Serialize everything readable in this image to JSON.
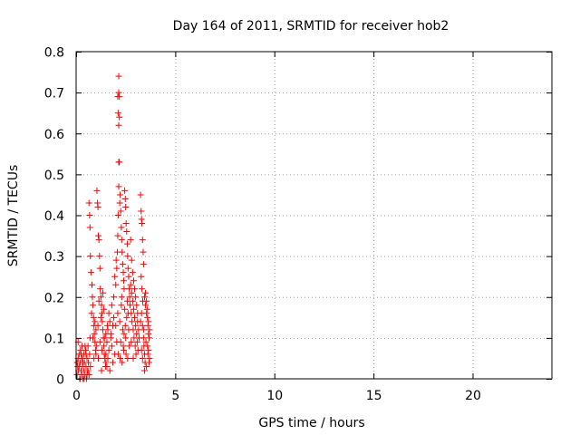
{
  "chart_data": {
    "type": "scatter",
    "title": "Day 164 of 2011, SRMTID for receiver hob2",
    "xlabel": "GPS time / hours",
    "ylabel": "SRMTID / TECUs",
    "xlim": [
      0,
      24
    ],
    "ylim": [
      0,
      0.8
    ],
    "grid": true,
    "xticks": [
      0,
      5,
      10,
      15,
      20
    ],
    "xtick_labels": [
      "0",
      "5",
      "10",
      "15",
      "20"
    ],
    "yticks": [
      0,
      0.1,
      0.2,
      0.3,
      0.4,
      0.5,
      0.6,
      0.7,
      0.8
    ],
    "ytick_labels": [
      "0",
      "0.1",
      "0.2",
      "0.3",
      "0.4",
      "0.5",
      "0.6",
      "0.7",
      "0.8"
    ],
    "marker": "plus",
    "color": "#ff0000",
    "series": [
      {
        "name": "SRMTID",
        "points": [
          [
            0.05,
            0.01
          ],
          [
            0.08,
            0.03
          ],
          [
            0.1,
            0.05
          ],
          [
            0.12,
            0.02
          ],
          [
            0.15,
            0.06
          ],
          [
            0.18,
            0.0
          ],
          [
            0.2,
            0.04
          ],
          [
            0.22,
            0.07
          ],
          [
            0.25,
            0.02
          ],
          [
            0.28,
            0.01
          ],
          [
            0.3,
            0.05
          ],
          [
            0.32,
            0.03
          ],
          [
            0.35,
            0.0
          ],
          [
            0.38,
            0.06
          ],
          [
            0.4,
            0.02
          ],
          [
            0.42,
            0.04
          ],
          [
            0.45,
            0.01
          ],
          [
            0.48,
            0.07
          ],
          [
            0.5,
            0.03
          ],
          [
            0.52,
            0.0
          ],
          [
            0.55,
            0.05
          ],
          [
            0.58,
            0.02
          ],
          [
            0.6,
            0.08
          ],
          [
            0.62,
            0.04
          ],
          [
            0.65,
            0.01
          ],
          [
            0.68,
            0.06
          ],
          [
            0.7,
            0.1
          ],
          [
            0.72,
            0.03
          ],
          [
            0.1,
            0.09
          ],
          [
            0.2,
            0.0
          ],
          [
            0.3,
            0.08
          ],
          [
            0.15,
            0.03
          ],
          [
            0.25,
            0.06
          ],
          [
            0.35,
            0.04
          ],
          [
            0.45,
            0.08
          ],
          [
            0.55,
            0.01
          ],
          [
            0.05,
            0.04
          ],
          [
            0.4,
            0.0
          ],
          [
            0.5,
            0.06
          ],
          [
            0.6,
            0.02
          ],
          [
            0.65,
            0.43
          ],
          [
            0.68,
            0.4
          ],
          [
            0.7,
            0.37
          ],
          [
            0.72,
            0.3
          ],
          [
            0.75,
            0.26
          ],
          [
            0.8,
            0.23
          ],
          [
            0.82,
            0.2
          ],
          [
            0.85,
            0.18
          ],
          [
            0.88,
            0.15
          ],
          [
            0.9,
            0.13
          ],
          [
            0.92,
            0.11
          ],
          [
            0.95,
            0.09
          ],
          [
            0.98,
            0.07
          ],
          [
            1.0,
            0.12
          ],
          [
            0.78,
            0.16
          ],
          [
            0.85,
            0.1
          ],
          [
            0.9,
            0.05
          ],
          [
            0.95,
            0.14
          ],
          [
            1.0,
            0.06
          ],
          [
            1.02,
            0.08
          ],
          [
            1.05,
            0.46
          ],
          [
            1.08,
            0.43
          ],
          [
            1.1,
            0.42
          ],
          [
            1.12,
            0.35
          ],
          [
            1.15,
            0.34
          ],
          [
            1.18,
            0.3
          ],
          [
            1.2,
            0.27
          ],
          [
            1.22,
            0.22
          ],
          [
            1.25,
            0.2
          ],
          [
            1.28,
            0.18
          ],
          [
            1.3,
            0.16
          ],
          [
            1.32,
            0.14
          ],
          [
            1.35,
            0.12
          ],
          [
            1.38,
            0.1
          ],
          [
            1.4,
            0.08
          ],
          [
            1.42,
            0.06
          ],
          [
            1.45,
            0.05
          ],
          [
            1.48,
            0.03
          ],
          [
            1.5,
            0.11
          ],
          [
            1.1,
            0.13
          ],
          [
            1.15,
            0.19
          ],
          [
            1.2,
            0.09
          ],
          [
            1.25,
            0.15
          ],
          [
            1.3,
            0.07
          ],
          [
            1.35,
            0.21
          ],
          [
            1.4,
            0.17
          ],
          [
            1.45,
            0.1
          ],
          [
            1.5,
            0.04
          ],
          [
            1.12,
            0.05
          ],
          [
            1.28,
            0.02
          ],
          [
            1.5,
            0.06
          ],
          [
            1.55,
            0.09
          ],
          [
            1.6,
            0.12
          ],
          [
            1.65,
            0.07
          ],
          [
            1.7,
            0.14
          ],
          [
            1.75,
            0.1
          ],
          [
            1.8,
            0.18
          ],
          [
            1.85,
            0.13
          ],
          [
            1.9,
            0.2
          ],
          [
            1.95,
            0.25
          ],
          [
            1.55,
            0.03
          ],
          [
            1.6,
            0.05
          ],
          [
            1.65,
            0.16
          ],
          [
            1.7,
            0.02
          ],
          [
            1.75,
            0.11
          ],
          [
            1.8,
            0.08
          ],
          [
            1.85,
            0.04
          ],
          [
            1.9,
            0.15
          ],
          [
            1.95,
            0.06
          ],
          [
            1.58,
            0.13
          ],
          [
            2.0,
            0.23
          ],
          [
            2.02,
            0.29
          ],
          [
            2.05,
            0.27
          ],
          [
            2.08,
            0.31
          ],
          [
            2.1,
            0.35
          ],
          [
            2.12,
            0.4
          ],
          [
            2.0,
            0.13
          ],
          [
            2.05,
            0.09
          ],
          [
            2.1,
            0.16
          ],
          [
            2.12,
            0.06
          ],
          [
            2.15,
            0.47
          ],
          [
            2.15,
            0.53
          ],
          [
            2.18,
            0.53
          ],
          [
            2.15,
            0.62
          ],
          [
            2.12,
            0.65
          ],
          [
            2.18,
            0.64
          ],
          [
            2.1,
            0.69
          ],
          [
            2.15,
            0.7
          ],
          [
            2.18,
            0.69
          ],
          [
            2.15,
            0.74
          ],
          [
            2.2,
            0.43
          ],
          [
            2.22,
            0.45
          ],
          [
            2.25,
            0.41
          ],
          [
            2.28,
            0.37
          ],
          [
            2.3,
            0.34
          ],
          [
            2.32,
            0.31
          ],
          [
            2.35,
            0.28
          ],
          [
            2.38,
            0.26
          ],
          [
            2.4,
            0.24
          ],
          [
            2.42,
            0.22
          ],
          [
            2.45,
            0.46
          ],
          [
            2.48,
            0.44
          ],
          [
            2.5,
            0.42
          ],
          [
            2.52,
            0.38
          ],
          [
            2.55,
            0.36
          ],
          [
            2.58,
            0.33
          ],
          [
            2.6,
            0.3
          ],
          [
            2.62,
            0.27
          ],
          [
            2.65,
            0.25
          ],
          [
            2.68,
            0.22
          ],
          [
            2.2,
            0.14
          ],
          [
            2.25,
            0.09
          ],
          [
            2.3,
            0.2
          ],
          [
            2.35,
            0.12
          ],
          [
            2.4,
            0.07
          ],
          [
            2.45,
            0.17
          ],
          [
            2.5,
            0.1
          ],
          [
            2.55,
            0.15
          ],
          [
            2.6,
            0.05
          ],
          [
            2.65,
            0.12
          ],
          [
            2.22,
            0.05
          ],
          [
            2.28,
            0.18
          ],
          [
            2.38,
            0.08
          ],
          [
            2.48,
            0.13
          ],
          [
            2.58,
            0.19
          ],
          [
            2.68,
            0.08
          ],
          [
            2.32,
            0.04
          ],
          [
            2.42,
            0.11
          ],
          [
            2.52,
            0.06
          ],
          [
            2.62,
            0.16
          ],
          [
            2.7,
            0.2
          ],
          [
            2.72,
            0.18
          ],
          [
            2.75,
            0.23
          ],
          [
            2.78,
            0.16
          ],
          [
            2.8,
            0.21
          ],
          [
            2.82,
            0.14
          ],
          [
            2.85,
            0.19
          ],
          [
            2.88,
            0.12
          ],
          [
            2.9,
            0.17
          ],
          [
            2.92,
            0.1
          ],
          [
            2.95,
            0.15
          ],
          [
            2.98,
            0.08
          ],
          [
            3.0,
            0.13
          ],
          [
            3.02,
            0.06
          ],
          [
            3.05,
            0.11
          ],
          [
            3.08,
            0.09
          ],
          [
            3.1,
            0.14
          ],
          [
            3.12,
            0.07
          ],
          [
            3.15,
            0.12
          ],
          [
            3.18,
            0.1
          ],
          [
            2.75,
            0.34
          ],
          [
            2.8,
            0.29
          ],
          [
            2.85,
            0.26
          ],
          [
            2.9,
            0.24
          ],
          [
            2.95,
            0.22
          ],
          [
            3.0,
            0.2
          ],
          [
            3.05,
            0.18
          ],
          [
            3.1,
            0.16
          ],
          [
            2.78,
            0.09
          ],
          [
            2.88,
            0.05
          ],
          [
            3.25,
            0.45
          ],
          [
            3.28,
            0.41
          ],
          [
            3.3,
            0.39
          ],
          [
            3.32,
            0.38
          ],
          [
            3.35,
            0.34
          ],
          [
            3.38,
            0.31
          ],
          [
            3.4,
            0.28
          ],
          [
            3.28,
            0.25
          ],
          [
            3.32,
            0.22
          ],
          [
            3.36,
            0.19
          ],
          [
            3.3,
            0.16
          ],
          [
            3.35,
            0.13
          ],
          [
            3.4,
            0.1
          ],
          [
            3.42,
            0.08
          ],
          [
            3.45,
            0.06
          ],
          [
            3.48,
            0.04
          ],
          [
            3.25,
            0.14
          ],
          [
            3.3,
            0.07
          ],
          [
            3.35,
            0.05
          ],
          [
            3.4,
            0.12
          ],
          [
            3.45,
            0.2
          ],
          [
            3.5,
            0.18
          ],
          [
            3.55,
            0.16
          ],
          [
            3.6,
            0.15
          ],
          [
            3.62,
            0.13
          ],
          [
            3.65,
            0.11
          ],
          [
            3.68,
            0.1
          ],
          [
            3.5,
            0.21
          ],
          [
            3.55,
            0.19
          ],
          [
            3.6,
            0.08
          ],
          [
            3.62,
            0.06
          ],
          [
            3.65,
            0.14
          ],
          [
            3.68,
            0.04
          ],
          [
            3.7,
            0.12
          ],
          [
            3.52,
            0.09
          ],
          [
            3.58,
            0.17
          ],
          [
            3.45,
            0.02
          ],
          [
            3.55,
            0.03
          ],
          [
            3.65,
            0.07
          ],
          [
            3.7,
            0.05
          ]
        ]
      }
    ]
  }
}
